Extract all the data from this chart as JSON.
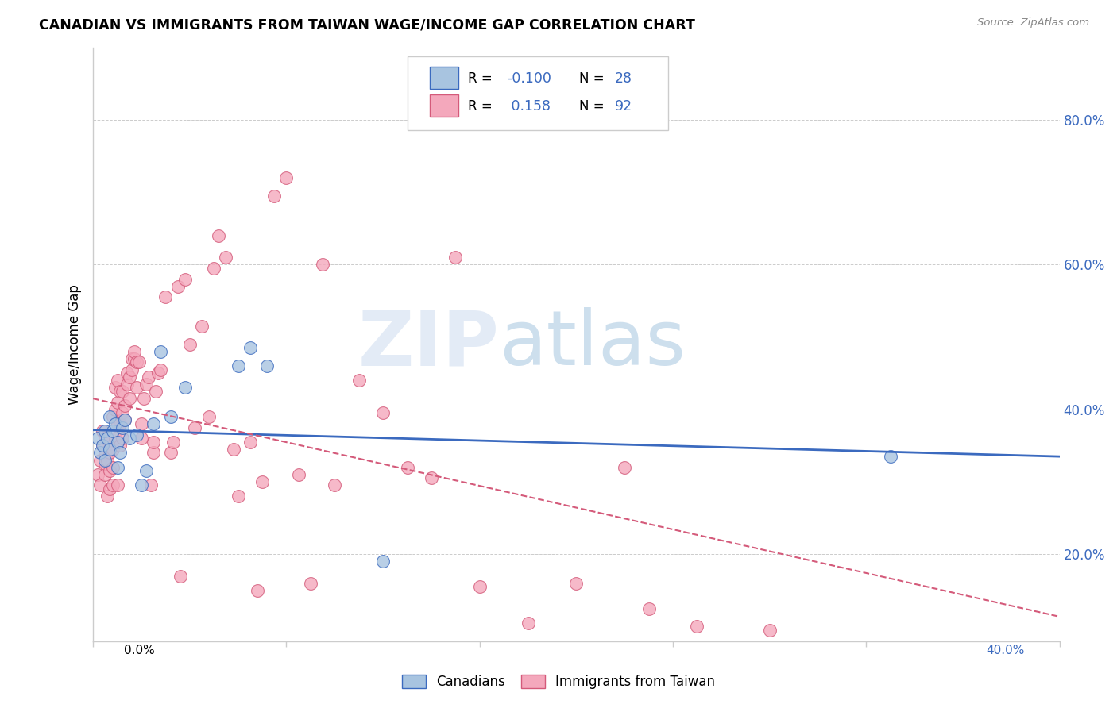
{
  "title": "CANADIAN VS IMMIGRANTS FROM TAIWAN WAGE/INCOME GAP CORRELATION CHART",
  "source": "Source: ZipAtlas.com",
  "ylabel": "Wage/Income Gap",
  "ytick_labels": [
    "20.0%",
    "40.0%",
    "60.0%",
    "80.0%"
  ],
  "ytick_values": [
    0.2,
    0.4,
    0.6,
    0.8
  ],
  "xlim": [
    0.0,
    0.4
  ],
  "ylim": [
    0.08,
    0.9
  ],
  "watermark_zip": "ZIP",
  "watermark_atlas": "atlas",
  "legend_canadians": "Canadians",
  "legend_immigrants": "Immigrants from Taiwan",
  "r_canadian": "-0.100",
  "n_canadian": "28",
  "r_immigrant": "0.158",
  "n_immigrant": "92",
  "canadian_fill": "#a8c4e0",
  "canadian_edge": "#3b6abf",
  "immigrant_fill": "#f4a8bc",
  "immigrant_edge": "#d45a7a",
  "canadian_line_color": "#3b6abf",
  "immigrant_line_color": "#d45a7a",
  "grid_color": "#cccccc",
  "canadian_scatter_x": [
    0.002,
    0.003,
    0.004,
    0.005,
    0.005,
    0.006,
    0.007,
    0.007,
    0.008,
    0.009,
    0.01,
    0.01,
    0.011,
    0.012,
    0.013,
    0.015,
    0.018,
    0.02,
    0.022,
    0.025,
    0.028,
    0.032,
    0.038,
    0.06,
    0.065,
    0.072,
    0.12,
    0.33
  ],
  "canadian_scatter_y": [
    0.36,
    0.34,
    0.35,
    0.37,
    0.33,
    0.36,
    0.39,
    0.345,
    0.37,
    0.38,
    0.355,
    0.32,
    0.34,
    0.375,
    0.385,
    0.36,
    0.365,
    0.295,
    0.315,
    0.38,
    0.48,
    0.39,
    0.43,
    0.46,
    0.485,
    0.46,
    0.19,
    0.335
  ],
  "immigrant_scatter_x": [
    0.002,
    0.003,
    0.003,
    0.004,
    0.004,
    0.005,
    0.005,
    0.005,
    0.005,
    0.006,
    0.006,
    0.007,
    0.007,
    0.007,
    0.007,
    0.008,
    0.008,
    0.008,
    0.008,
    0.009,
    0.009,
    0.009,
    0.01,
    0.01,
    0.01,
    0.01,
    0.011,
    0.011,
    0.011,
    0.012,
    0.012,
    0.012,
    0.013,
    0.013,
    0.014,
    0.014,
    0.015,
    0.015,
    0.016,
    0.016,
    0.017,
    0.017,
    0.018,
    0.018,
    0.019,
    0.02,
    0.02,
    0.021,
    0.022,
    0.023,
    0.024,
    0.025,
    0.025,
    0.026,
    0.027,
    0.028,
    0.03,
    0.032,
    0.033,
    0.035,
    0.036,
    0.038,
    0.04,
    0.042,
    0.045,
    0.048,
    0.05,
    0.052,
    0.055,
    0.058,
    0.06,
    0.065,
    0.068,
    0.07,
    0.075,
    0.08,
    0.085,
    0.09,
    0.095,
    0.1,
    0.11,
    0.12,
    0.13,
    0.14,
    0.15,
    0.16,
    0.18,
    0.2,
    0.22,
    0.23,
    0.25,
    0.28
  ],
  "immigrant_scatter_y": [
    0.31,
    0.33,
    0.295,
    0.35,
    0.37,
    0.31,
    0.325,
    0.34,
    0.36,
    0.28,
    0.33,
    0.29,
    0.315,
    0.34,
    0.36,
    0.295,
    0.32,
    0.345,
    0.39,
    0.36,
    0.4,
    0.43,
    0.295,
    0.38,
    0.41,
    0.44,
    0.35,
    0.38,
    0.425,
    0.36,
    0.395,
    0.425,
    0.385,
    0.405,
    0.435,
    0.45,
    0.415,
    0.445,
    0.455,
    0.47,
    0.47,
    0.48,
    0.43,
    0.465,
    0.465,
    0.36,
    0.38,
    0.415,
    0.435,
    0.445,
    0.295,
    0.34,
    0.355,
    0.425,
    0.45,
    0.455,
    0.555,
    0.34,
    0.355,
    0.57,
    0.17,
    0.58,
    0.49,
    0.375,
    0.515,
    0.39,
    0.595,
    0.64,
    0.61,
    0.345,
    0.28,
    0.355,
    0.15,
    0.3,
    0.695,
    0.72,
    0.31,
    0.16,
    0.6,
    0.295,
    0.44,
    0.395,
    0.32,
    0.305,
    0.61,
    0.155,
    0.105,
    0.16,
    0.32,
    0.125,
    0.1,
    0.095
  ]
}
